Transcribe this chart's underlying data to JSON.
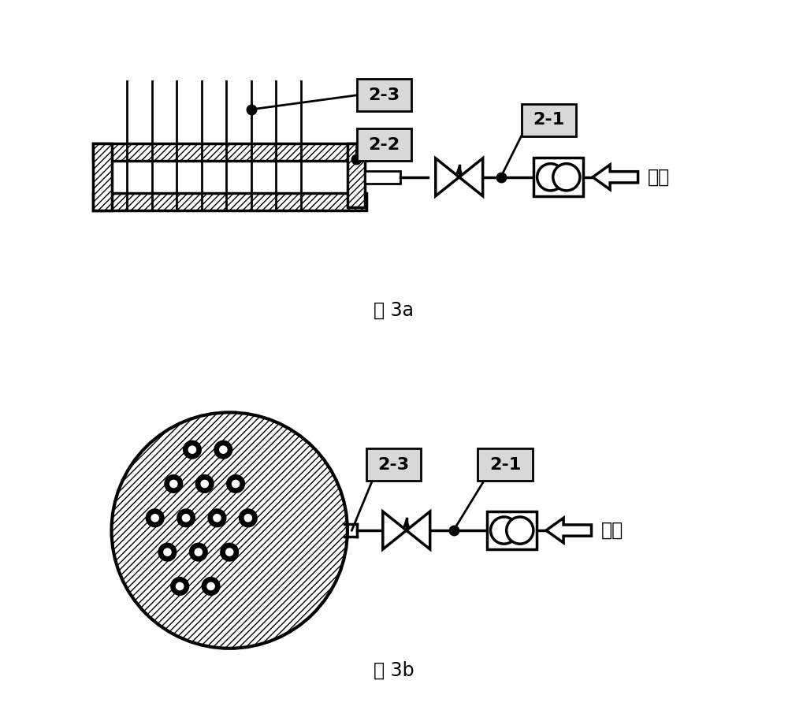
{
  "fig3a_caption": "图 3a",
  "fig3b_caption": "图 3b",
  "label_21": "2-1",
  "label_22": "2-2",
  "label_23": "2-3",
  "qiyuan_text": "气源",
  "bg_color": "#ffffff",
  "hatch_color": "#000000",
  "box_bg": "#d8d8d8",
  "line_color": "#000000"
}
